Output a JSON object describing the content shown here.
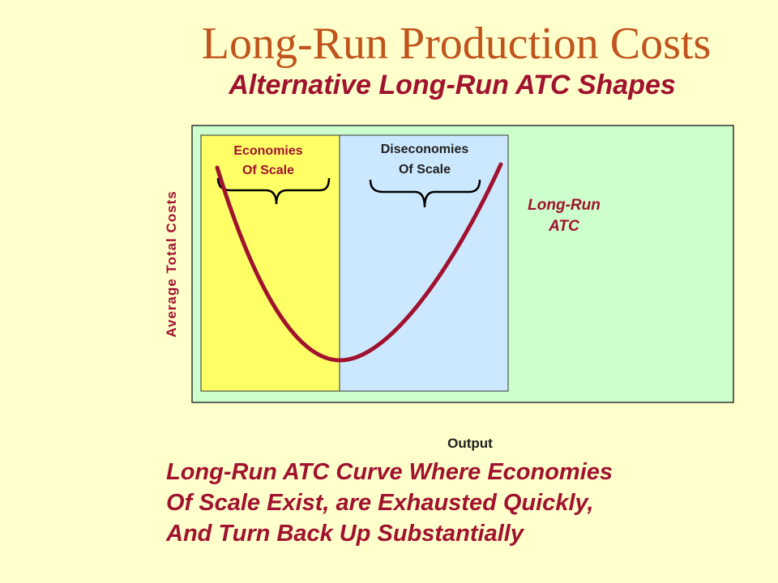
{
  "title": "Long-Run Production Costs",
  "subtitle": "Alternative Long-Run ATC Shapes",
  "diagram": {
    "economies_label": [
      "Economies",
      "Of Scale"
    ],
    "diseconomies_label": [
      "Diseconomies",
      "Of Scale"
    ],
    "curve_label": [
      "Long-Run",
      "ATC"
    ],
    "ylabel": "Average Total Costs",
    "xlabel": "Output",
    "colors": {
      "background": "#FFFFCC",
      "plot_area": "#CCFFCC",
      "economies_region": "#FFFF66",
      "diseconomies_region": "#CCE8FF",
      "curve": "#A0122E",
      "title": "#C0541C",
      "text": "#A0122E"
    }
  },
  "caption": [
    "Long-Run ATC Curve Where Economies",
    "Of Scale Exist, are Exhausted Quickly,",
    "And Turn Back Up Substantially"
  ]
}
